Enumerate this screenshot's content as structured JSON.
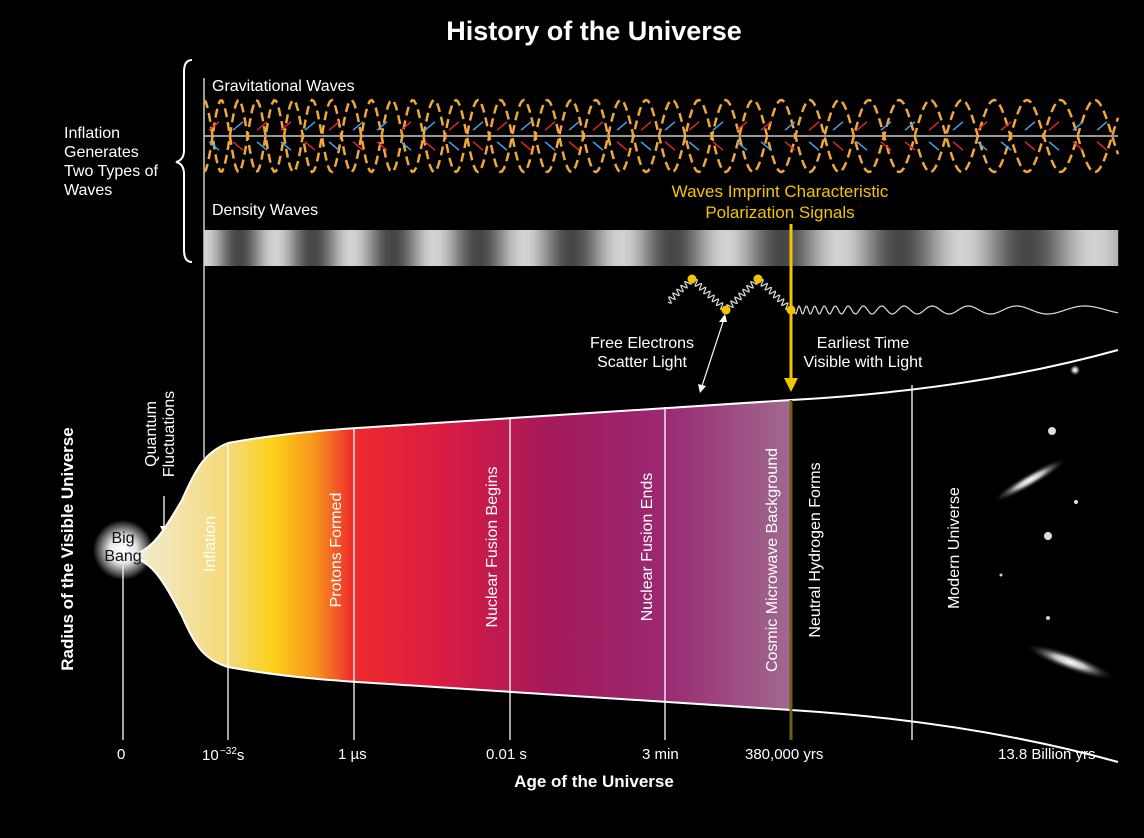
{
  "title": "History of the Universe",
  "inflation_label": [
    "Inflation",
    "Generates",
    "Two Types of",
    "Waves"
  ],
  "gravitational_waves_label": "Gravitational Waves",
  "density_waves_label": "Density Waves",
  "polarization_label": [
    "Waves Imprint Characteristic",
    "Polarization Signals"
  ],
  "free_electrons_label": [
    "Free Electrons",
    "Scatter Light"
  ],
  "earliest_time_label": [
    "Earliest Time",
    "Visible with Light"
  ],
  "quantum_label": [
    "Quantum",
    "Fluctuations"
  ],
  "big_bang_label": [
    "Big",
    "Bang"
  ],
  "y_axis_label": "Radius of the Visible Universe",
  "x_axis_label": "Age of the Universe",
  "eras": [
    {
      "name": "Inflation"
    },
    {
      "name": "Protons Formed"
    },
    {
      "name": "Nuclear Fusion Begins"
    },
    {
      "name": "Nuclear Fusion Ends"
    },
    {
      "name": "Cosmic Microwave Background"
    },
    {
      "name": "Neutral Hydrogen Forms"
    },
    {
      "name": "Modern Universe"
    }
  ],
  "ticks": {
    "zero": "0",
    "t32": "10",
    "t32_exp": "−32",
    "t32_unit": "s",
    "us": "1 µs",
    "cs": "0.01 s",
    "min": "3 min",
    "cmb": "380,000 yrs",
    "now": "13.8 Billion yrs"
  },
  "colors": {
    "background": "#000000",
    "highlight": "#f5c400",
    "wave_orange": "#f0a63c",
    "arrow_blue": "#3fa9f5",
    "arrow_red": "#e8262a"
  }
}
